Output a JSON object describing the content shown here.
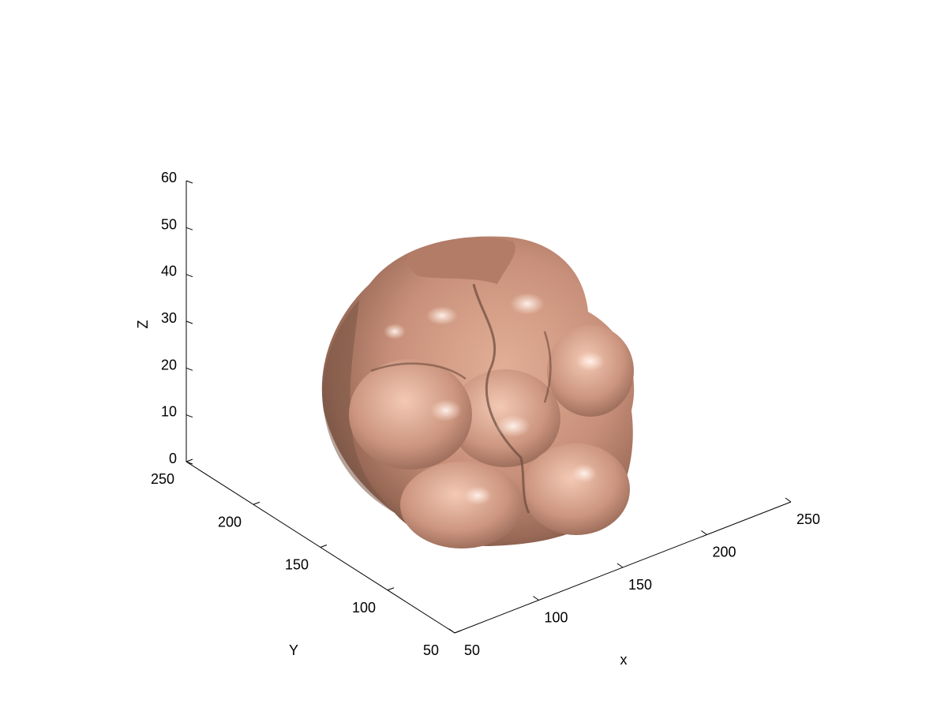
{
  "chart_data": {
    "type": "3d-surface",
    "title": "",
    "xlabel": "x",
    "ylabel": "Y",
    "zlabel": "Z",
    "x_ticks": [
      50,
      100,
      150,
      200,
      250
    ],
    "y_ticks": [
      50,
      100,
      150,
      200,
      250
    ],
    "z_ticks": [
      0,
      10,
      20,
      30,
      40,
      50,
      60
    ],
    "xlim": [
      50,
      250
    ],
    "ylim": [
      50,
      250
    ],
    "zlim": [
      0,
      60
    ],
    "grid": false,
    "legend": "none",
    "surface": {
      "name": "",
      "color": "#C8907A",
      "shadow_color": "#6B4A3C",
      "highlight_color": "#FFE8DC",
      "x_range": [
        85,
        245
      ],
      "y_range": [
        70,
        235
      ],
      "z_range": [
        0,
        56
      ]
    }
  }
}
